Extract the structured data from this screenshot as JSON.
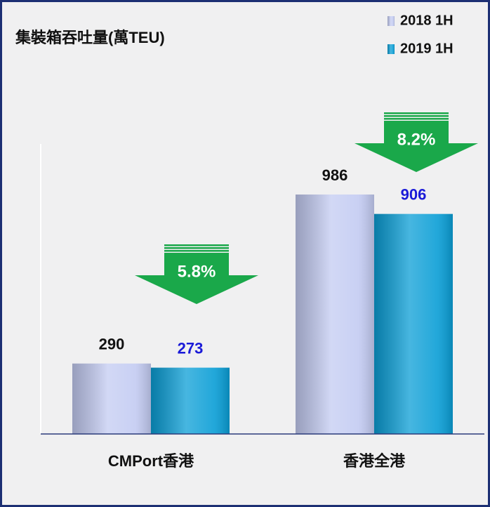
{
  "chart_data": {
    "type": "bar",
    "title": "集裝箱吞吐量(萬TEU)",
    "categories": [
      "CMPort香港",
      "香港全港"
    ],
    "series": [
      {
        "name": "2018 1H",
        "color": "#c3cbf2",
        "label_color": "#111111",
        "values": [
          290,
          986
        ]
      },
      {
        "name": "2019 1H",
        "color": "#0a9ed6",
        "label_color": "#1a1ad8",
        "values": [
          273,
          906
        ]
      }
    ],
    "annotations": [
      "5.8%",
      "8.2%"
    ]
  }
}
